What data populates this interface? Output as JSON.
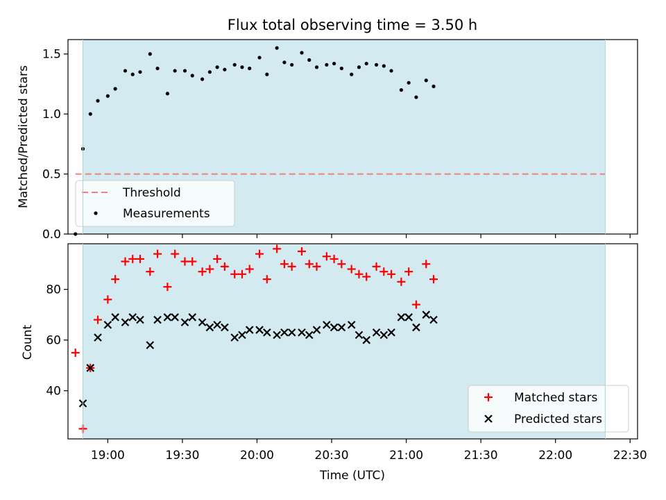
{
  "figure_title": "Flux total observing time = 3.50 h",
  "colors": {
    "observing_band": "#d3eaf1",
    "threshold": "#f08080",
    "measurements": "#000000",
    "matched": "#ff0000",
    "predicted": "#000000"
  },
  "chart_data": [
    {
      "type": "scatter",
      "title": "Flux total observing time = 3.50 h",
      "xlabel": "",
      "ylabel": "Matched/Predicted stars",
      "x_unit": "time (UTC, HH:MM)",
      "xlim": [
        "18:44",
        "22:33"
      ],
      "ylim": [
        0,
        1.62
      ],
      "yticks": [
        "0.0",
        "0.5",
        "1.0",
        "1.5"
      ],
      "shaded_interval": [
        "18:50",
        "22:20"
      ],
      "legend_position": "lower-left",
      "threshold": {
        "name": "Threshold",
        "style": "dashed",
        "value": 0.5,
        "x_start": "18:47",
        "x_end": "22:20"
      },
      "series": [
        {
          "name": "Measurements",
          "marker": "dot",
          "points": [
            [
              "18:47",
              0.0
            ],
            [
              "18:50",
              0.71
            ],
            [
              "18:53",
              1.0
            ],
            [
              "18:56",
              1.11
            ],
            [
              "19:00",
              1.15
            ],
            [
              "19:03",
              1.21
            ],
            [
              "19:07",
              1.36
            ],
            [
              "19:10",
              1.33
            ],
            [
              "19:13",
              1.35
            ],
            [
              "19:17",
              1.5
            ],
            [
              "19:20",
              1.38
            ],
            [
              "19:24",
              1.17
            ],
            [
              "19:27",
              1.36
            ],
            [
              "19:31",
              1.36
            ],
            [
              "19:34",
              1.32
            ],
            [
              "19:38",
              1.29
            ],
            [
              "19:41",
              1.35
            ],
            [
              "19:44",
              1.39
            ],
            [
              "19:47",
              1.37
            ],
            [
              "19:51",
              1.41
            ],
            [
              "19:54",
              1.39
            ],
            [
              "19:57",
              1.38
            ],
            [
              "20:01",
              1.47
            ],
            [
              "20:04",
              1.33
            ],
            [
              "20:08",
              1.55
            ],
            [
              "20:11",
              1.43
            ],
            [
              "20:14",
              1.41
            ],
            [
              "20:18",
              1.51
            ],
            [
              "20:21",
              1.45
            ],
            [
              "20:24",
              1.39
            ],
            [
              "20:28",
              1.41
            ],
            [
              "20:31",
              1.42
            ],
            [
              "20:34",
              1.38
            ],
            [
              "20:38",
              1.33
            ],
            [
              "20:41",
              1.39
            ],
            [
              "20:44",
              1.42
            ],
            [
              "20:48",
              1.41
            ],
            [
              "20:51",
              1.4
            ],
            [
              "20:54",
              1.36
            ],
            [
              "20:58",
              1.2
            ],
            [
              "21:01",
              1.26
            ],
            [
              "21:04",
              1.14
            ],
            [
              "21:08",
              1.28
            ],
            [
              "21:11",
              1.23
            ]
          ]
        }
      ]
    },
    {
      "type": "scatter",
      "title": "",
      "xlabel": "Time (UTC)",
      "ylabel": "Count",
      "x_unit": "time (UTC, HH:MM)",
      "xlim": [
        "18:44",
        "22:33"
      ],
      "ylim": [
        21,
        98
      ],
      "xticks": [
        "19:00",
        "19:30",
        "20:00",
        "20:30",
        "21:00",
        "21:30",
        "22:00",
        "22:30"
      ],
      "yticks": [
        "40",
        "60",
        "80"
      ],
      "shaded_interval": [
        "18:50",
        "22:20"
      ],
      "legend_position": "lower-right",
      "series": [
        {
          "name": "Matched stars",
          "marker": "plus",
          "points": [
            [
              "18:47",
              55
            ],
            [
              "18:50",
              25
            ],
            [
              "18:53",
              49
            ],
            [
              "18:56",
              68
            ],
            [
              "19:00",
              76
            ],
            [
              "19:03",
              84
            ],
            [
              "19:07",
              91
            ],
            [
              "19:10",
              92
            ],
            [
              "19:13",
              92
            ],
            [
              "19:17",
              87
            ],
            [
              "19:20",
              94
            ],
            [
              "19:24",
              81
            ],
            [
              "19:27",
              94
            ],
            [
              "19:31",
              91
            ],
            [
              "19:34",
              91
            ],
            [
              "19:38",
              87
            ],
            [
              "19:41",
              88
            ],
            [
              "19:44",
              92
            ],
            [
              "19:47",
              89
            ],
            [
              "19:51",
              86
            ],
            [
              "19:54",
              86
            ],
            [
              "19:57",
              88
            ],
            [
              "20:01",
              94
            ],
            [
              "20:04",
              84
            ],
            [
              "20:08",
              96
            ],
            [
              "20:11",
              90
            ],
            [
              "20:14",
              89
            ],
            [
              "20:18",
              95
            ],
            [
              "20:21",
              90
            ],
            [
              "20:24",
              89
            ],
            [
              "20:28",
              93
            ],
            [
              "20:31",
              92
            ],
            [
              "20:34",
              90
            ],
            [
              "20:38",
              88
            ],
            [
              "20:41",
              86
            ],
            [
              "20:44",
              85
            ],
            [
              "20:48",
              89
            ],
            [
              "20:51",
              87
            ],
            [
              "20:54",
              86
            ],
            [
              "20:58",
              83
            ],
            [
              "21:01",
              87
            ],
            [
              "21:04",
              74
            ],
            [
              "21:08",
              90
            ],
            [
              "21:11",
              84
            ]
          ]
        },
        {
          "name": "Predicted stars",
          "marker": "x",
          "points": [
            [
              "18:50",
              35
            ],
            [
              "18:53",
              49
            ],
            [
              "18:56",
              61
            ],
            [
              "19:00",
              66
            ],
            [
              "19:03",
              69
            ],
            [
              "19:07",
              67
            ],
            [
              "19:10",
              69
            ],
            [
              "19:13",
              68
            ],
            [
              "19:17",
              58
            ],
            [
              "19:20",
              68
            ],
            [
              "19:24",
              69
            ],
            [
              "19:27",
              69
            ],
            [
              "19:31",
              67
            ],
            [
              "19:34",
              69
            ],
            [
              "19:38",
              67
            ],
            [
              "19:41",
              65
            ],
            [
              "19:44",
              66
            ],
            [
              "19:47",
              65
            ],
            [
              "19:51",
              61
            ],
            [
              "19:54",
              62
            ],
            [
              "19:57",
              64
            ],
            [
              "20:01",
              64
            ],
            [
              "20:04",
              63
            ],
            [
              "20:08",
              62
            ],
            [
              "20:11",
              63
            ],
            [
              "20:14",
              63
            ],
            [
              "20:18",
              63
            ],
            [
              "20:21",
              62
            ],
            [
              "20:24",
              64
            ],
            [
              "20:28",
              66
            ],
            [
              "20:31",
              65
            ],
            [
              "20:34",
              65
            ],
            [
              "20:38",
              66
            ],
            [
              "20:41",
              62
            ],
            [
              "20:44",
              60
            ],
            [
              "20:48",
              63
            ],
            [
              "20:51",
              62
            ],
            [
              "20:54",
              63
            ],
            [
              "20:58",
              69
            ],
            [
              "21:01",
              69
            ],
            [
              "21:04",
              65
            ],
            [
              "21:08",
              70
            ],
            [
              "21:11",
              68
            ]
          ]
        }
      ]
    }
  ]
}
